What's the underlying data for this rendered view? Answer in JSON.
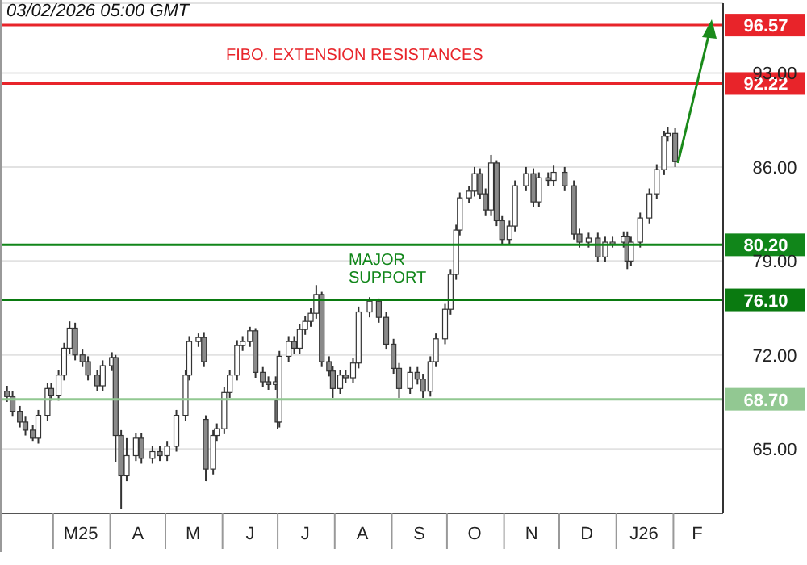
{
  "chart_data": {
    "type": "candlestick",
    "x": [
      "2025-02-04",
      "2025-02-07",
      "2025-02-11",
      "2025-02-14",
      "2025-02-18",
      "2025-02-21",
      "2025-02-26",
      "2025-02-28",
      "2025-03-04",
      "2025-03-07",
      "2025-03-10",
      "2025-03-13",
      "2025-03-17",
      "2025-03-20",
      "2025-03-25",
      "2025-03-28",
      "2025-04-02",
      "2025-04-04",
      "2025-04-07",
      "2025-04-10",
      "2025-04-15",
      "2025-04-18",
      "2025-04-24",
      "2025-04-28",
      "2025-05-02",
      "2025-05-07",
      "2025-05-12",
      "2025-05-14",
      "2025-05-19",
      "2025-05-22",
      "2025-05-23",
      "2025-05-27",
      "2025-05-29",
      "2025-06-02",
      "2025-06-05",
      "2025-06-09",
      "2025-06-12",
      "2025-06-16",
      "2025-06-19",
      "2025-06-23",
      "2025-06-26",
      "2025-06-30",
      "2025-07-01",
      "2025-07-02",
      "2025-07-07",
      "2025-07-10",
      "2025-07-13",
      "2025-07-16",
      "2025-07-19",
      "2025-07-22",
      "2025-07-25",
      "2025-07-29",
      "2025-07-31",
      "2025-08-04",
      "2025-08-07",
      "2025-08-11",
      "2025-08-14",
      "2025-08-20",
      "2025-08-25",
      "2025-08-29",
      "2025-09-02",
      "2025-09-05",
      "2025-09-11",
      "2025-09-15",
      "2025-09-18",
      "2025-09-22",
      "2025-09-25",
      "2025-09-30",
      "2025-10-03",
      "2025-10-06",
      "2025-10-08",
      "2025-10-13",
      "2025-10-16",
      "2025-10-19",
      "2025-10-22",
      "2025-10-25",
      "2025-10-28",
      "2025-10-31",
      "2025-11-04",
      "2025-11-07",
      "2025-11-13",
      "2025-11-17",
      "2025-11-20",
      "2025-11-25",
      "2025-11-28",
      "2025-12-04",
      "2025-12-09",
      "2025-12-12",
      "2025-12-17",
      "2025-12-22",
      "2025-12-26",
      "2025-12-30",
      "2026-01-05",
      "2026-01-07",
      "2026-01-09",
      "2026-01-14",
      "2026-01-19",
      "2026-01-23",
      "2026-01-27",
      "2026-01-29",
      "2026-02-02"
    ],
    "ohlc": [
      [
        69.3,
        69.7,
        68.5,
        68.9
      ],
      [
        68.9,
        69.3,
        67.4,
        67.8
      ],
      [
        67.8,
        68.2,
        66.6,
        67.0
      ],
      [
        67.0,
        67.4,
        66.0,
        66.4
      ],
      [
        66.4,
        66.8,
        65.6,
        65.8
      ],
      [
        65.8,
        67.9,
        65.4,
        67.5
      ],
      [
        67.5,
        69.9,
        67.1,
        69.5
      ],
      [
        69.5,
        69.9,
        68.6,
        69.0
      ],
      [
        69.0,
        70.9,
        68.6,
        70.5
      ],
      [
        70.5,
        72.9,
        70.1,
        72.5
      ],
      [
        72.5,
        74.5,
        72.1,
        74.0
      ],
      [
        74.0,
        74.4,
        71.6,
        72.0
      ],
      [
        72.0,
        72.4,
        71.1,
        71.5
      ],
      [
        71.5,
        71.9,
        70.1,
        70.5
      ],
      [
        70.5,
        70.9,
        69.3,
        69.7
      ],
      [
        69.7,
        71.6,
        69.3,
        71.2
      ],
      [
        71.2,
        72.2,
        70.8,
        71.8
      ],
      [
        71.8,
        72.0,
        64.0,
        66.0
      ],
      [
        66.0,
        66.4,
        60.5,
        63.0
      ],
      [
        63.0,
        65.8,
        62.6,
        64.5
      ],
      [
        64.5,
        66.2,
        64.1,
        65.8
      ],
      [
        65.8,
        66.2,
        63.9,
        64.3
      ],
      [
        64.3,
        65.2,
        63.9,
        64.8
      ],
      [
        64.8,
        65.2,
        64.1,
        64.5
      ],
      [
        64.5,
        65.6,
        64.1,
        65.2
      ],
      [
        65.2,
        67.9,
        64.8,
        67.5
      ],
      [
        67.5,
        70.9,
        67.1,
        70.5
      ],
      [
        70.5,
        73.4,
        70.1,
        73.0
      ],
      [
        73.0,
        73.6,
        72.6,
        73.3
      ],
      [
        73.3,
        73.7,
        71.1,
        71.5
      ],
      [
        67.2,
        67.5,
        62.6,
        63.5
      ],
      [
        63.5,
        66.4,
        63.1,
        66.0
      ],
      [
        66.0,
        66.9,
        65.6,
        66.5
      ],
      [
        66.5,
        69.6,
        66.1,
        69.2
      ],
      [
        69.2,
        70.9,
        68.8,
        70.5
      ],
      [
        70.5,
        73.1,
        70.1,
        72.7
      ],
      [
        72.7,
        73.4,
        72.3,
        73.0
      ],
      [
        73.0,
        74.1,
        72.6,
        73.8
      ],
      [
        73.8,
        74.0,
        70.3,
        70.7
      ],
      [
        70.7,
        71.1,
        69.6,
        70.0
      ],
      [
        70.0,
        70.4,
        69.4,
        69.8
      ],
      [
        69.8,
        70.4,
        69.4,
        70.0
      ],
      [
        68.6,
        68.8,
        66.5,
        67.0
      ],
      [
        67.0,
        72.3,
        66.6,
        71.9
      ],
      [
        71.9,
        73.4,
        71.5,
        73.0
      ],
      [
        73.0,
        73.4,
        72.1,
        72.5
      ],
      [
        72.5,
        74.3,
        72.1,
        73.9
      ],
      [
        73.9,
        74.9,
        73.5,
        74.5
      ],
      [
        74.5,
        75.5,
        74.1,
        75.1
      ],
      [
        75.1,
        77.2,
        74.7,
        76.5
      ],
      [
        76.5,
        76.7,
        71.1,
        71.5
      ],
      [
        71.5,
        71.9,
        70.4,
        70.8
      ],
      [
        70.8,
        71.2,
        68.8,
        69.5
      ],
      [
        69.5,
        70.9,
        69.1,
        70.5
      ],
      [
        70.5,
        70.9,
        69.9,
        70.3
      ],
      [
        70.3,
        71.8,
        69.9,
        71.4
      ],
      [
        71.4,
        75.6,
        71.0,
        75.2
      ],
      [
        75.2,
        76.3,
        74.8,
        76.0
      ],
      [
        76.0,
        76.2,
        74.4,
        74.8
      ],
      [
        74.8,
        75.2,
        72.4,
        72.8
      ],
      [
        72.8,
        73.2,
        70.6,
        71.0
      ],
      [
        71.0,
        71.4,
        68.8,
        69.5
      ],
      [
        69.5,
        71.1,
        69.1,
        70.7
      ],
      [
        70.7,
        71.1,
        69.8,
        70.2
      ],
      [
        70.2,
        70.6,
        68.8,
        69.3
      ],
      [
        69.3,
        71.9,
        68.9,
        71.5
      ],
      [
        71.5,
        73.6,
        71.1,
        73.2
      ],
      [
        73.2,
        75.8,
        72.8,
        75.4
      ],
      [
        75.4,
        78.4,
        75.0,
        78.0
      ],
      [
        78.0,
        81.7,
        77.6,
        81.3
      ],
      [
        81.3,
        84.1,
        80.9,
        83.7
      ],
      [
        83.7,
        84.6,
        83.3,
        84.2
      ],
      [
        84.2,
        86.0,
        83.8,
        85.5
      ],
      [
        85.5,
        85.9,
        83.6,
        84.0
      ],
      [
        84.0,
        84.4,
        82.4,
        82.8
      ],
      [
        82.8,
        86.9,
        82.4,
        86.3
      ],
      [
        86.3,
        86.5,
        81.6,
        82.0
      ],
      [
        82.0,
        82.4,
        80.2,
        80.6
      ],
      [
        80.6,
        82.0,
        80.2,
        81.6
      ],
      [
        81.6,
        85.0,
        81.2,
        84.6
      ],
      [
        84.6,
        86.0,
        84.2,
        85.5
      ],
      [
        85.5,
        85.9,
        83.0,
        83.4
      ],
      [
        83.4,
        85.6,
        83.0,
        85.2
      ],
      [
        85.2,
        85.6,
        84.6,
        85.0
      ],
      [
        85.0,
        86.1,
        84.6,
        85.6
      ],
      [
        85.6,
        86.0,
        84.2,
        84.6
      ],
      [
        84.6,
        85.0,
        80.6,
        81.0
      ],
      [
        81.0,
        81.4,
        80.0,
        80.4
      ],
      [
        80.4,
        81.1,
        80.0,
        80.7
      ],
      [
        80.7,
        81.1,
        78.9,
        79.3
      ],
      [
        79.3,
        80.8,
        78.9,
        80.4
      ],
      [
        80.4,
        80.8,
        80.0,
        80.4
      ],
      [
        80.4,
        81.2,
        80.0,
        80.8
      ],
      [
        80.8,
        81.2,
        78.4,
        79.0
      ],
      [
        79.0,
        80.8,
        78.6,
        80.4
      ],
      [
        80.4,
        82.6,
        80.0,
        82.2
      ],
      [
        82.2,
        84.4,
        81.8,
        84.0
      ],
      [
        84.0,
        86.2,
        83.6,
        85.8
      ],
      [
        85.8,
        88.7,
        85.4,
        88.3
      ],
      [
        88.3,
        89.0,
        87.9,
        88.5
      ],
      [
        88.5,
        88.9,
        86.0,
        86.4
      ]
    ],
    "color": "#333333",
    "xlim": [
      "2025-02-01",
      "2026-02-28"
    ],
    "xticks": [
      {
        "value": "2025-03-16",
        "label": "M25"
      },
      {
        "value": "2025-04-16",
        "label": "A"
      },
      {
        "value": "2025-05-16",
        "label": "M"
      },
      {
        "value": "2025-06-16",
        "label": "J"
      },
      {
        "value": "2025-07-16",
        "label": "J"
      },
      {
        "value": "2025-08-16",
        "label": "A"
      },
      {
        "value": "2025-09-16",
        "label": "S"
      },
      {
        "value": "2025-10-16",
        "label": "O"
      },
      {
        "value": "2025-11-16",
        "label": "N"
      },
      {
        "value": "2025-12-16",
        "label": "D"
      },
      {
        "value": "2026-01-16",
        "label": "J26"
      },
      {
        "value": "2026-02-14",
        "label": "F"
      }
    ],
    "ylim": [
      60.2,
      98.2
    ],
    "yticks": [
      {
        "value": 65,
        "label": "65.00"
      },
      {
        "value": 72,
        "label": "72.00"
      },
      {
        "value": 79,
        "label": "79.00"
      },
      {
        "value": 86,
        "label": "86.00"
      },
      {
        "value": 93,
        "label": "93.00"
      }
    ],
    "grid": "y",
    "ref_lines": [
      {
        "axis": "y",
        "value": 96.57,
        "label": "96.57",
        "color": "#e8242a"
      },
      {
        "axis": "y",
        "value": 92.22,
        "label": "92.22",
        "color": "#e8242a"
      },
      {
        "axis": "y",
        "value": 80.2,
        "label": "80.20",
        "color": "#11861a"
      },
      {
        "axis": "y",
        "value": 76.1,
        "label": "76.10",
        "color": "#0a7a10"
      },
      {
        "axis": "y",
        "value": 68.7,
        "label": "68.70",
        "color": "#92c892"
      }
    ],
    "annotations": [
      "03/02/2026 05:00 GMT",
      "FIBO. EXTENSION RESISTANCES",
      "MAJOR SUPPORT"
    ]
  }
}
